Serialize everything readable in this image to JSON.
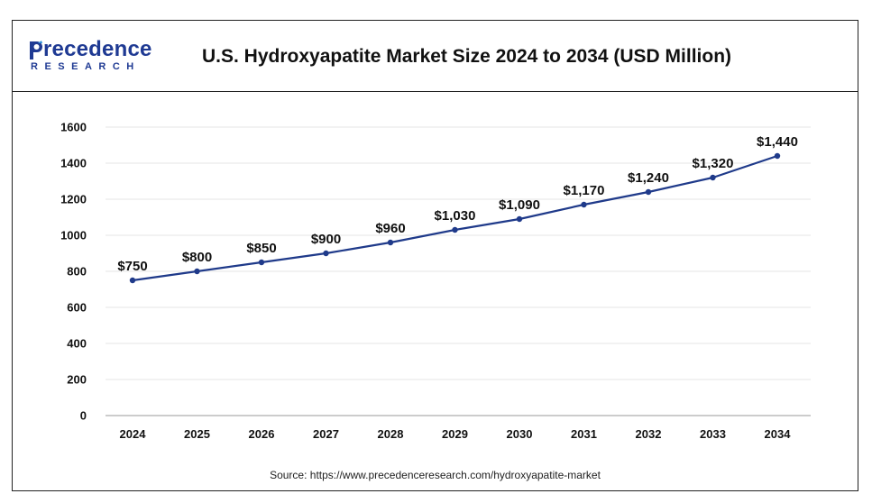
{
  "header": {
    "logo_top": "recedence",
    "logo_bottom": "RESEARCH",
    "title": "U.S. Hydroxyapatite Market Size 2024 to 2034 (USD Million)"
  },
  "source": "Source: https://www.precedenceresearch.com/hydroxyapatite-market",
  "colors": {
    "line": "#1f3a8a",
    "brand": "#1f3a93"
  },
  "chart_data": {
    "type": "line",
    "title": "U.S. Hydroxyapatite Market Size 2024 to 2034 (USD Million)",
    "xlabel": "",
    "ylabel": "",
    "categories": [
      "2024",
      "2025",
      "2026",
      "2027",
      "2028",
      "2029",
      "2030",
      "2031",
      "2032",
      "2033",
      "2034"
    ],
    "series": [
      {
        "values": [
          750,
          800,
          850,
          900,
          960,
          1030,
          1090,
          1170,
          1240,
          1320,
          1440
        ],
        "labels": [
          "$750",
          "$800",
          "$850",
          "$900",
          "$960",
          "$1,030",
          "$1,090",
          "$1,170",
          "$1,240",
          "$1,320",
          "$1,440"
        ]
      }
    ],
    "ylim": [
      0,
      1600
    ],
    "yticks": [
      0,
      200,
      400,
      600,
      800,
      1000,
      1200,
      1400,
      1600
    ],
    "grid": true,
    "legend": "none"
  }
}
